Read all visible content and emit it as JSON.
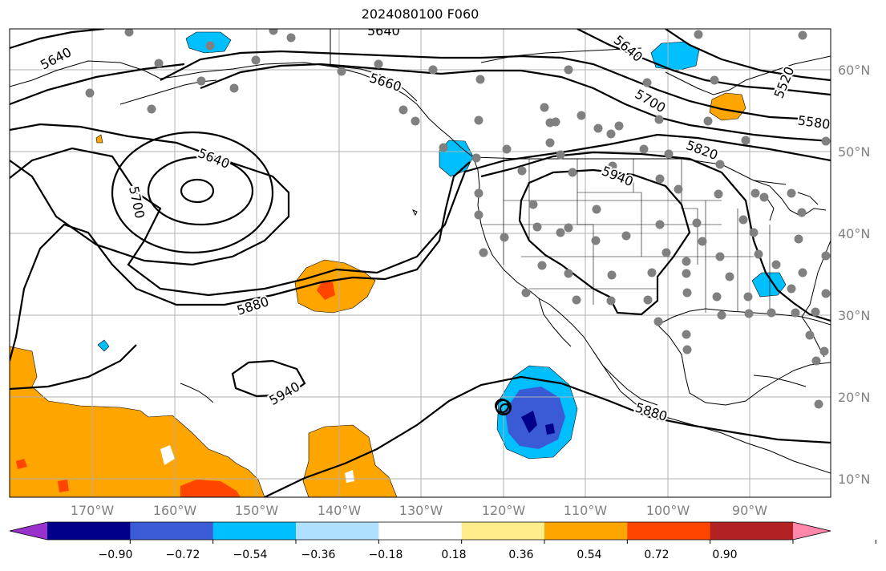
{
  "title": "2024080100 F060",
  "map": {
    "projection": "plate-carree",
    "lon_range": [
      -180,
      -80
    ],
    "lat_range": [
      8,
      65
    ],
    "grid": true,
    "coastlines": true,
    "state_borders": true
  },
  "lat_labels": [
    "60°N",
    "50°N",
    "40°N",
    "30°N",
    "20°N",
    "10°N"
  ],
  "lon_labels": [
    "170°W",
    "160°W",
    "150°W",
    "140°W",
    "130°W",
    "120°W",
    "110°W",
    "100°W",
    "90°W"
  ],
  "contour_labels": [
    "5640",
    "5640",
    "5640",
    "5640",
    "5700",
    "5700",
    "5520",
    "5580",
    "5820",
    "5940",
    "5880",
    "5940",
    "5880",
    "5660"
  ],
  "colorbar": {
    "colors": [
      "#9932cc",
      "#00008b",
      "#3b5bd6",
      "#00bfff",
      "#b0e0ff",
      "#ffffff",
      "#ffec8b",
      "#ffa500",
      "#ff4500",
      "#b22222",
      "#ff88aa"
    ],
    "ticks": [
      "−0.90",
      "−0.72",
      "−0.54",
      "−0.36",
      "−0.18",
      "0.18",
      "0.36",
      "0.54",
      "0.72",
      "0.90"
    ],
    "extend": "both"
  },
  "station_color": "#808080"
}
